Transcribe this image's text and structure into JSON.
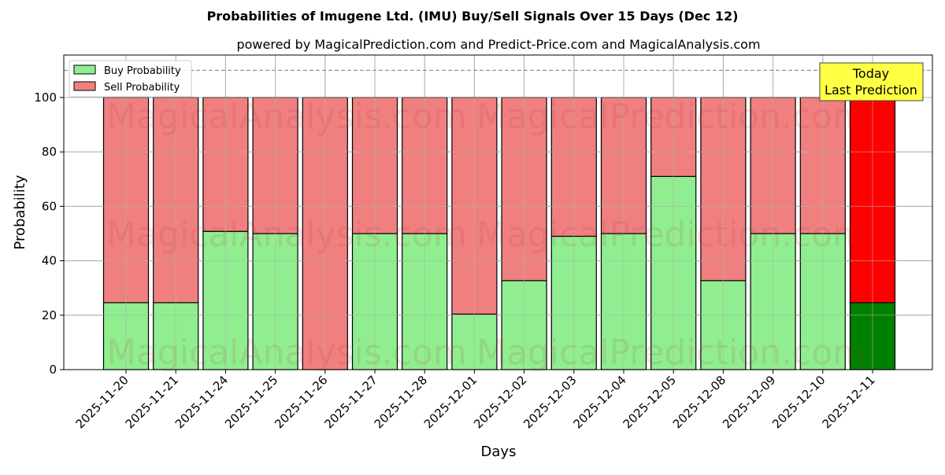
{
  "chart_data": {
    "type": "bar",
    "stacked": true,
    "title": "Probabilities of Imugene Ltd. (IMU) Buy/Sell Signals Over 15 Days (Dec 12)",
    "subtitle": "powered by MagicalPrediction.com and Predict-Price.com and MagicalAnalysis.com",
    "xlabel": "Days",
    "ylabel": "Probability",
    "ylim": [
      0,
      115.6
    ],
    "yticks": [
      0,
      20,
      40,
      60,
      80,
      100
    ],
    "grid": true,
    "legend_position": "upper left",
    "categories": [
      "2025-11-20",
      "2025-11-21",
      "2025-11-24",
      "2025-11-25",
      "2025-11-26",
      "2025-11-27",
      "2025-11-28",
      "2025-12-01",
      "2025-12-02",
      "2025-12-03",
      "2025-12-04",
      "2025-12-05",
      "2025-12-08",
      "2025-12-09",
      "2025-12-10",
      "2025-12-11"
    ],
    "series": [
      {
        "name": "Buy Probability",
        "color": "#90ee90",
        "highlight_color": "#008000",
        "values": [
          24.6,
          24.6,
          50.8,
          50.0,
          0.0,
          50.0,
          50.0,
          20.4,
          32.7,
          49.0,
          50.0,
          71.0,
          32.7,
          50.0,
          50.0,
          24.6
        ]
      },
      {
        "name": "Sell Probability",
        "color": "#f08080",
        "highlight_color": "#ff0000",
        "values": [
          75.4,
          75.4,
          49.2,
          50.0,
          100.0,
          50.0,
          50.0,
          79.6,
          67.3,
          51.0,
          50.0,
          29.0,
          67.3,
          50.0,
          50.0,
          75.4
        ]
      }
    ],
    "reference_line": {
      "y": 110,
      "style": "dashed",
      "color": "#808080"
    },
    "annotation": {
      "text_line1": "Today",
      "text_line2": "Last Prediction",
      "background": "#ffff44",
      "target_category": "2025-12-11"
    },
    "watermarks": [
      "MagicalAnalysis.com",
      "MagicalPrediction.com"
    ]
  }
}
